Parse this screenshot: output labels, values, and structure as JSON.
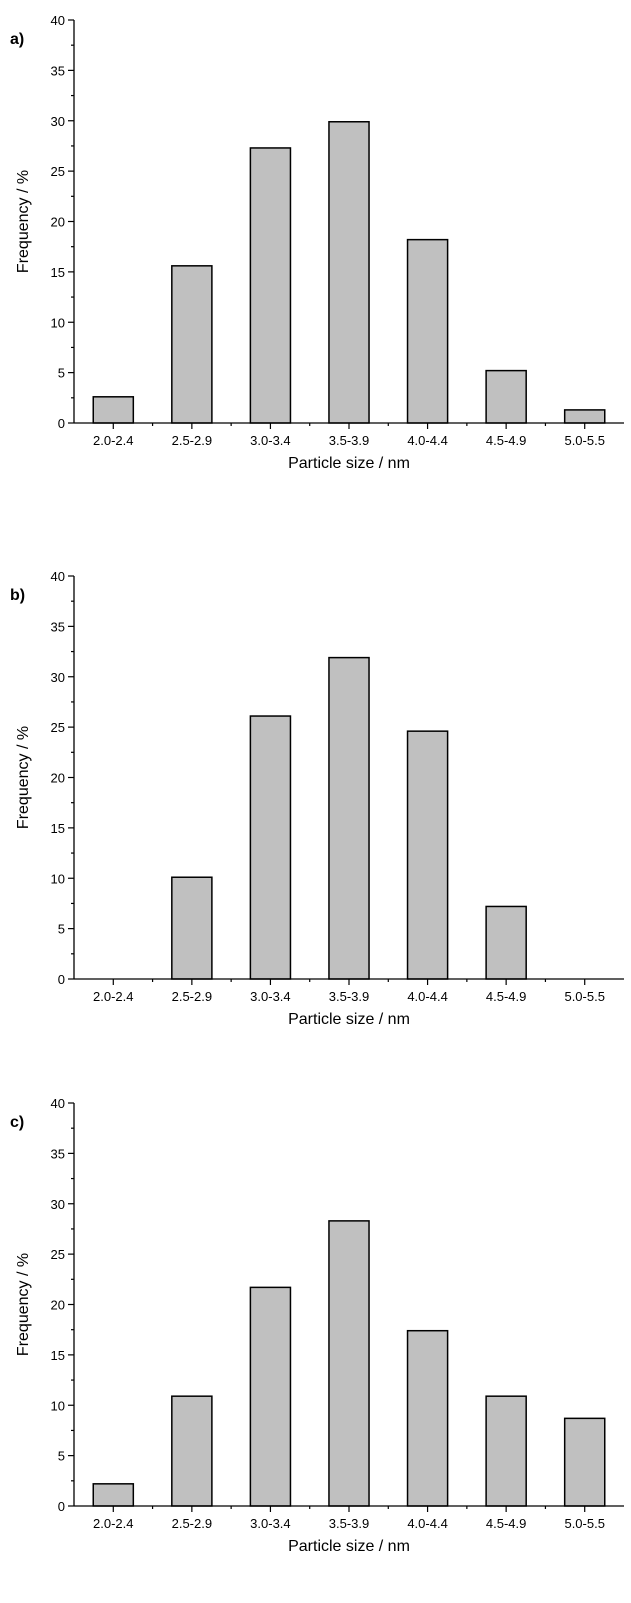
{
  "chart_data": [
    {
      "type": "bar",
      "panel_label": "a)",
      "categories": [
        "2.0-2.4",
        "2.5-2.9",
        "3.0-3.4",
        "3.5-3.9",
        "4.0-4.4",
        "4.5-4.9",
        "5.0-5.5"
      ],
      "values": [
        2.6,
        15.6,
        27.3,
        29.9,
        18.2,
        5.2,
        1.3
      ],
      "xlabel": "Particle size / nm",
      "ylabel": "Frequency / %",
      "ylim": [
        0,
        40
      ],
      "yticks": [
        "0",
        "5",
        "10",
        "15",
        "20",
        "25",
        "30",
        "35",
        "40"
      ],
      "bar_color": "#c0c0c0",
      "grid": false
    },
    {
      "type": "bar",
      "panel_label": "b)",
      "categories": [
        "2.0-2.4",
        "2.5-2.9",
        "3.0-3.4",
        "3.5-3.9",
        "4.0-4.4",
        "4.5-4.9",
        "5.0-5.5"
      ],
      "values": [
        0,
        10.1,
        26.1,
        31.9,
        24.6,
        7.2,
        0
      ],
      "xlabel": "Particle size / nm",
      "ylabel": "Frequency / %",
      "ylim": [
        0,
        40
      ],
      "yticks": [
        "0",
        "5",
        "10",
        "15",
        "20",
        "25",
        "30",
        "35",
        "40"
      ],
      "bar_color": "#c0c0c0",
      "grid": false
    },
    {
      "type": "bar",
      "panel_label": "c)",
      "categories": [
        "2.0-2.4",
        "2.5-2.9",
        "3.0-3.4",
        "3.5-3.9",
        "4.0-4.4",
        "4.5-4.9",
        "5.0-5.5"
      ],
      "values": [
        2.2,
        10.9,
        21.7,
        28.3,
        17.4,
        10.9,
        8.7
      ],
      "xlabel": "Particle size / nm",
      "ylabel": "Frequency / %",
      "ylim": [
        0,
        40
      ],
      "yticks": [
        "0",
        "5",
        "10",
        "15",
        "20",
        "25",
        "30",
        "35",
        "40"
      ],
      "bar_color": "#c0c0c0",
      "grid": false
    }
  ]
}
